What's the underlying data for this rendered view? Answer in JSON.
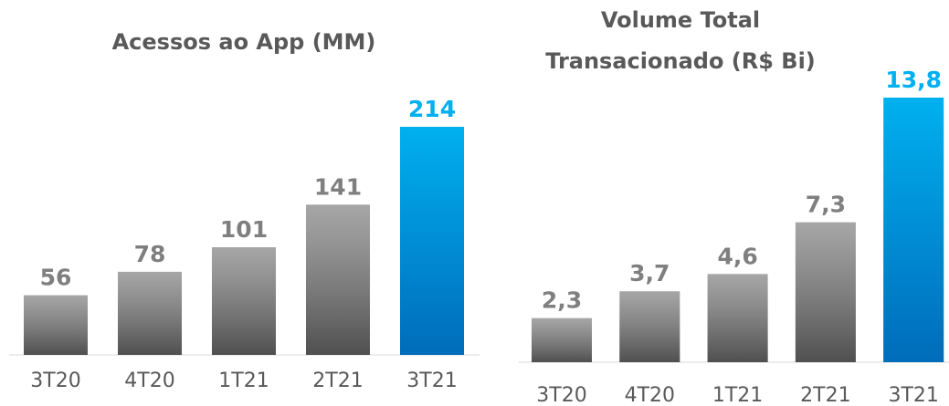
{
  "chart_data": [
    {
      "type": "bar",
      "title": [
        "Acessos ao App (MM)"
      ],
      "categories": [
        "3T20",
        "4T20",
        "1T21",
        "2T21",
        "3T21"
      ],
      "values": [
        56,
        78,
        101,
        141,
        214
      ],
      "colors": [
        "#a6a6a6",
        "#a6a6a6",
        "#a6a6a6",
        "#a6a6a6",
        "#00b0f0"
      ]
    },
    {
      "type": "bar",
      "title": [
        "Volume Total",
        "Transacionado (R$ Bi)"
      ],
      "categories": [
        "3T20",
        "4T20",
        "1T21",
        "2T21",
        "3T21"
      ],
      "values": [
        2.3,
        3.7,
        4.6,
        7.3,
        13.8
      ],
      "value_labels": [
        "2,3",
        "3,7",
        "4,6",
        "7,3",
        "13,8"
      ],
      "colors": [
        "#a6a6a6",
        "#a6a6a6",
        "#a6a6a6",
        "#a6a6a6",
        "#00b0f0"
      ]
    }
  ]
}
